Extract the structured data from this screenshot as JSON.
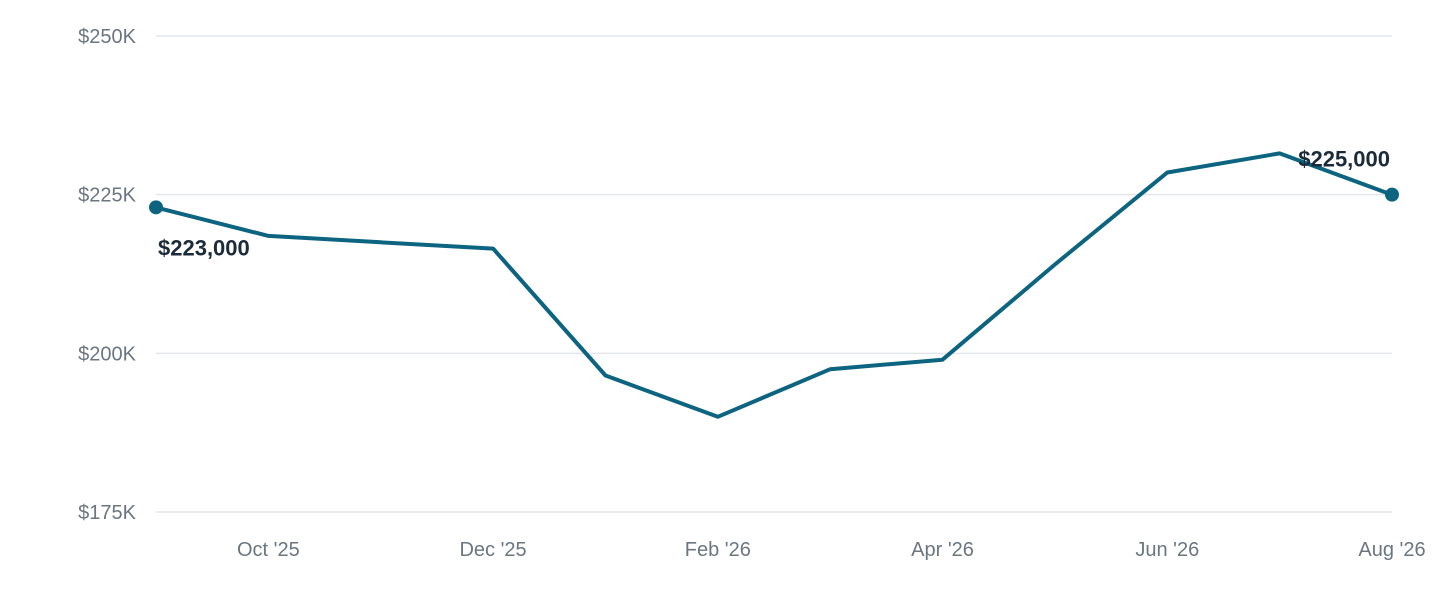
{
  "chart_data": {
    "type": "line",
    "title": "",
    "xlabel": "",
    "ylabel": "",
    "ylim": [
      175000,
      250000
    ],
    "yticks": [
      {
        "value": 250000,
        "label": "$250K"
      },
      {
        "value": 225000,
        "label": "$225K"
      },
      {
        "value": 200000,
        "label": "$200K"
      },
      {
        "value": 175000,
        "label": "$175K"
      }
    ],
    "xticks": [
      {
        "x": "2025-10",
        "label": "Oct '25"
      },
      {
        "x": "2025-12",
        "label": "Dec '25"
      },
      {
        "x": "2026-02",
        "label": "Feb '26"
      },
      {
        "x": "2026-04",
        "label": "Apr '26"
      },
      {
        "x": "2026-06",
        "label": "Jun '26"
      },
      {
        "x": "2026-08",
        "label": "Aug '26"
      }
    ],
    "grid": true,
    "series": [
      {
        "color": "#0d6480",
        "points": [
          {
            "x": "2025-09",
            "y": 223000
          },
          {
            "x": "2025-10",
            "y": 218500
          },
          {
            "x": "2025-11",
            "y": 217500
          },
          {
            "x": "2025-12",
            "y": 216500
          },
          {
            "x": "2026-01",
            "y": 196500
          },
          {
            "x": "2026-02",
            "y": 190000
          },
          {
            "x": "2026-03",
            "y": 197500
          },
          {
            "x": "2026-04",
            "y": 199000
          },
          {
            "x": "2026-05",
            "y": 214000
          },
          {
            "x": "2026-06",
            "y": 228500
          },
          {
            "x": "2026-07",
            "y": 231500
          },
          {
            "x": "2026-08",
            "y": 225000
          }
        ]
      }
    ],
    "annotations": [
      {
        "x": "2025-09",
        "y": 223000,
        "label": "$223,000",
        "position": "below-right"
      },
      {
        "x": "2026-08",
        "y": 225000,
        "label": "$225,000",
        "position": "above-left"
      }
    ]
  }
}
